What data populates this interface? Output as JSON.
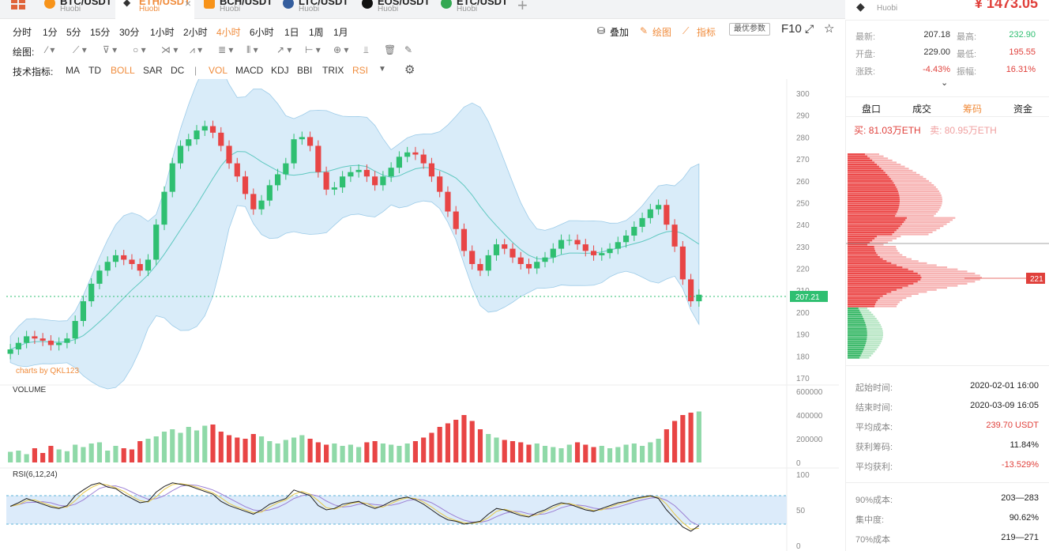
{
  "tabs": [
    {
      "symbol": "BTC/USDT",
      "exchange": "Huobi",
      "color": "#f7931a"
    },
    {
      "symbol": "ETH/USDT",
      "exchange": "Huobi",
      "color": "#333333",
      "active": true,
      "close": "×"
    },
    {
      "symbol": "BCH/USDT",
      "exchange": "Huobi",
      "color": "#f7931a"
    },
    {
      "symbol": "LTC/USDT",
      "exchange": "Huobi",
      "color": "#345d9d"
    },
    {
      "symbol": "EOS/USDT",
      "exchange": "Huobi",
      "color": "#111111"
    },
    {
      "symbol": "ETC/USDT",
      "exchange": "Huobi",
      "color": "#33a852"
    }
  ],
  "add_tab": "+",
  "header": {
    "symbol": "ETH/USDT",
    "exchange": "Huobi",
    "price": "¥ 1473.05"
  },
  "periods": [
    "分时",
    "1分",
    "5分",
    "15分",
    "30分",
    "1小时",
    "2小时",
    "4小时",
    "6小时",
    "1日",
    "1周",
    "1月"
  ],
  "active_period": "4小时",
  "top_actions": {
    "overlay": "叠加",
    "draw": "绘图",
    "indicator": "指标",
    "best_params": "最优参数",
    "f10": "F10"
  },
  "draw_label": "绘图:",
  "indicator_label": "技术指标:",
  "indicators": [
    {
      "label": "MA",
      "on": false
    },
    {
      "label": "TD",
      "on": false
    },
    {
      "label": "BOLL",
      "on": true
    },
    {
      "label": "SAR",
      "on": false
    },
    {
      "label": "DC",
      "on": false
    },
    {
      "label": "|",
      "on": false
    },
    {
      "label": "VOL",
      "on": true
    },
    {
      "label": "MACD",
      "on": false
    },
    {
      "label": "KDJ",
      "on": false
    },
    {
      "label": "BBI",
      "on": false
    },
    {
      "label": "TRIX",
      "on": false
    },
    {
      "label": "RSI",
      "on": true
    }
  ],
  "watermark": "charts by QKL123",
  "volume_label": "VOLUME",
  "rsi_label": "RSI(6,12,24)",
  "price_axis": [
    "300",
    "290",
    "280",
    "270",
    "260",
    "250",
    "240",
    "230",
    "220",
    "210",
    "200",
    "190",
    "180",
    "170"
  ],
  "volume_axis": [
    "600000",
    "400000",
    "200000",
    "0"
  ],
  "rsi_axis": [
    "100",
    "50",
    "0"
  ],
  "last_price_tag": "207.21",
  "chip_tag": "221",
  "stats": {
    "latest_label": "最新:",
    "latest": "207.18",
    "high_label": "最高:",
    "high": "232.90",
    "open_label": "开盘:",
    "open": "229.00",
    "low_label": "最低:",
    "low": "195.55",
    "change_label": "涨跌:",
    "change": "-4.43%",
    "amp_label": "振幅:",
    "amp": "16.31%"
  },
  "right_tabs": [
    "盘口",
    "成交",
    "筹码",
    "资金"
  ],
  "active_right_tab": "筹码",
  "buy_label": "买:",
  "buy_value": "81.03万ETH",
  "sell_label": "卖:",
  "sell_value": "80.95万ETH",
  "chip_info": [
    {
      "label": "起始时间:",
      "value": "2020-02-01 16:00"
    },
    {
      "label": "结束时间:",
      "value": "2020-03-09 16:05"
    },
    {
      "label": "平均成本:",
      "value": "239.70 USDT",
      "color": "#e0403b"
    },
    {
      "label": "获利筹码:",
      "value": "11.84%"
    },
    {
      "label": "平均获利:",
      "value": "-13.529%",
      "color": "#e0403b"
    },
    {
      "label": "90%成本:",
      "value": "203—283"
    },
    {
      "label": "集中度:",
      "value": "90.62%"
    },
    {
      "label": "70%成本",
      "value": "219—271"
    }
  ],
  "colors": {
    "up": "#2fbf71",
    "down": "#e84545",
    "accent": "#f08c3c",
    "band": "#cfe7f7"
  },
  "chart_data": {
    "type": "candlestick",
    "price_range": [
      170,
      300
    ],
    "close": [
      183,
      186,
      189,
      188,
      187,
      185,
      186,
      188,
      196,
      205,
      213,
      219,
      223,
      226,
      224,
      222,
      219,
      224,
      240,
      255,
      268,
      276,
      279,
      283,
      285,
      282,
      276,
      268,
      262,
      254,
      247,
      251,
      258,
      263,
      268,
      279,
      280,
      276,
      264,
      256,
      257,
      262,
      264,
      265,
      262,
      258,
      262,
      266,
      271,
      273,
      272,
      268,
      262,
      255,
      246,
      238,
      228,
      222,
      219,
      226,
      231,
      229,
      225,
      222,
      220,
      223,
      225,
      229,
      233,
      233,
      231,
      228,
      226,
      227,
      229,
      232,
      235,
      239,
      243,
      247,
      249,
      240,
      230,
      215,
      205,
      208
    ],
    "volume_range": [
      0,
      600000
    ],
    "volume": [
      90000,
      100000,
      70000,
      120000,
      80000,
      140000,
      110000,
      95000,
      150000,
      130000,
      160000,
      170000,
      100000,
      140000,
      120000,
      110000,
      180000,
      200000,
      220000,
      260000,
      280000,
      250000,
      300000,
      270000,
      310000,
      320000,
      260000,
      230000,
      210000,
      200000,
      240000,
      220000,
      180000,
      160000,
      190000,
      210000,
      230000,
      200000,
      170000,
      150000,
      160000,
      140000,
      150000,
      130000,
      170000,
      180000,
      160000,
      150000,
      140000,
      160000,
      180000,
      210000,
      250000,
      300000,
      330000,
      360000,
      400000,
      350000,
      280000,
      240000,
      210000,
      190000,
      180000,
      170000,
      150000,
      160000,
      140000,
      130000,
      120000,
      150000,
      170000,
      150000,
      130000,
      140000,
      120000,
      130000,
      150000,
      160000,
      140000,
      170000,
      200000,
      280000,
      350000,
      400000,
      420000,
      430000
    ],
    "rsi_range": [
      0,
      100
    ],
    "rsi": [
      55,
      60,
      66,
      62,
      58,
      54,
      52,
      56,
      70,
      78,
      85,
      88,
      82,
      80,
      72,
      66,
      60,
      62,
      75,
      83,
      88,
      86,
      84,
      80,
      76,
      72,
      62,
      56,
      52,
      48,
      44,
      50,
      58,
      62,
      66,
      78,
      74,
      70,
      56,
      50,
      52,
      58,
      60,
      62,
      56,
      52,
      56,
      62,
      66,
      68,
      64,
      58,
      50,
      42,
      36,
      34,
      30,
      32,
      34,
      44,
      52,
      50,
      46,
      42,
      40,
      46,
      50,
      56,
      60,
      58,
      54,
      50,
      48,
      52,
      56,
      60,
      62,
      66,
      68,
      70,
      66,
      50,
      38,
      26,
      20,
      28
    ]
  }
}
